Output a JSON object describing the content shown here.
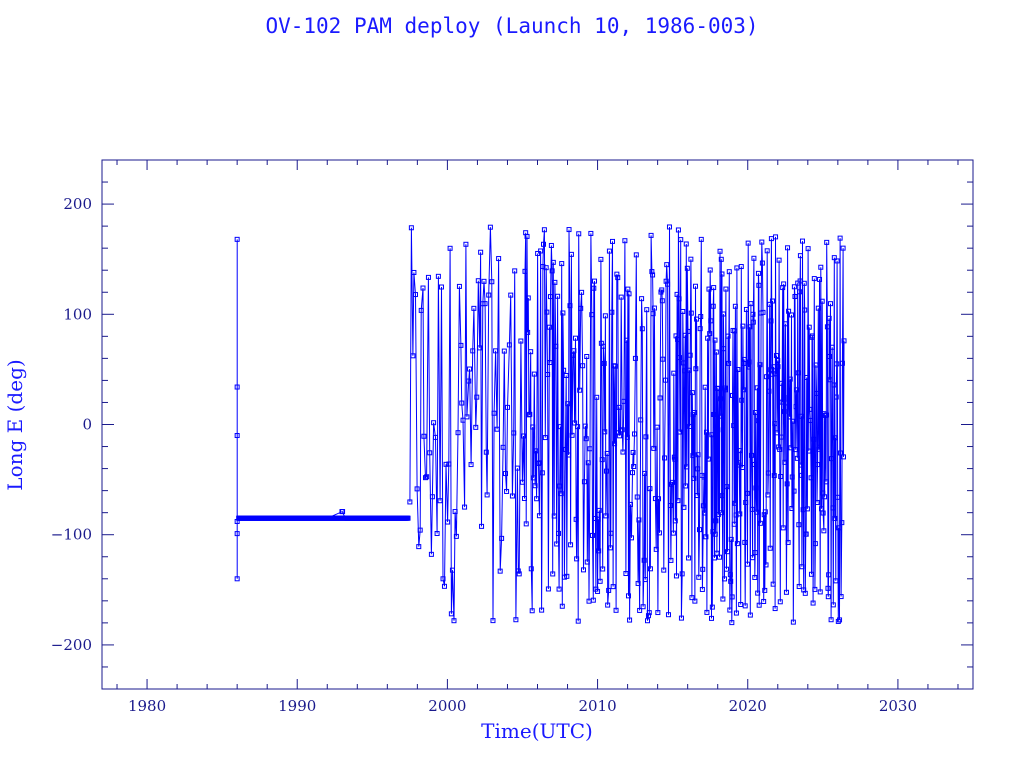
{
  "chart_data": {
    "type": "line",
    "title": "OV-102 PAM deploy (Launch 10, 1986-003)",
    "xlabel": "Time(UTC)",
    "ylabel": "Long E (deg)",
    "xlim": [
      1977,
      2035
    ],
    "ylim": [
      -240,
      240
    ],
    "x_ticks": [
      1980,
      1990,
      2000,
      2010,
      2020,
      2030
    ],
    "y_ticks": [
      200,
      100,
      0,
      -100,
      -200
    ],
    "x_tick_labels": [
      "1980",
      "1990",
      "2000",
      "2010",
      "2020",
      "2030"
    ],
    "y_tick_labels": [
      "200",
      "100",
      "0",
      "−100",
      "−200"
    ],
    "grid": false,
    "marker": "square",
    "series_color": "#0000ff",
    "series": [
      {
        "segments": [
          {
            "x": [
              1986.0,
              1986.0,
              1986.0,
              1986.0,
              1986.0,
              1986.0
            ],
            "y": [
              168,
              34,
              -10,
              -99,
              -140,
              -88
            ]
          },
          {
            "x": [
              1986.1,
              1988.0,
              1990.0,
              1992.0,
              1993.0,
              1993.2,
              1995.0,
              1997.4
            ],
            "y": [
              -85,
              -85,
              -85,
              -85,
              -79,
              -85,
              -85,
              -85
            ]
          },
          {
            "x_range": [
              1997.4,
              2026.4
            ],
            "y_range": [
              -180,
              180
            ],
            "pattern": "wrapping longitude oscillation"
          }
        ]
      }
    ]
  }
}
